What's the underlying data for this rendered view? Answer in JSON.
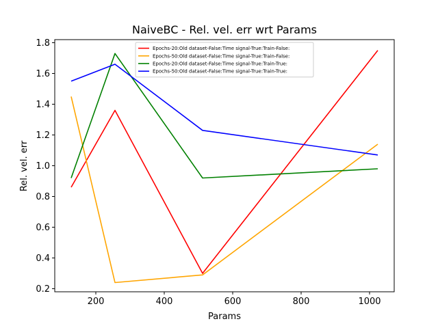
{
  "chart_data": {
    "type": "line",
    "title": "NaiveBC - Rel. vel. err wrt Params",
    "xlabel": "Params",
    "ylabel": "Rel. vel. err",
    "xlim": [
      80,
      1072
    ],
    "ylim": [
      0.18,
      1.82
    ],
    "x_ticks": [
      200,
      400,
      600,
      800,
      1000
    ],
    "y_ticks": [
      0.2,
      0.4,
      0.6,
      0.8,
      1.0,
      1.2,
      1.4,
      1.6,
      1.8
    ],
    "x_tick_labels": [
      "200",
      "400",
      "600",
      "800",
      "1000"
    ],
    "y_tick_labels": [
      "0.2",
      "0.4",
      "0.6",
      "0.8",
      "1.0",
      "1.2",
      "1.4",
      "1.6",
      "1.8"
    ],
    "legend_position": "top-center",
    "grid": false,
    "x": [
      128,
      256,
      512,
      1024
    ],
    "series": [
      {
        "name": "Epochs-20:Old dataset-False:Time signal-True:Train-False:",
        "color": "#ff0000",
        "values": [
          0.86,
          1.36,
          0.3,
          1.75
        ]
      },
      {
        "name": "Epochs-50:Old dataset-False:Time signal-True:Train-False:",
        "color": "#ffa500",
        "values": [
          1.45,
          0.24,
          0.29,
          1.14
        ]
      },
      {
        "name": "Epochs-20:Old dataset-False:Time signal-True:Train-True:",
        "color": "#008000",
        "values": [
          0.92,
          1.73,
          0.92,
          0.98
        ]
      },
      {
        "name": "Epochs-50:Old dataset-False:Time signal-True:Train-True:",
        "color": "#0000ff",
        "values": [
          1.55,
          1.66,
          1.23,
          1.07
        ]
      }
    ]
  }
}
